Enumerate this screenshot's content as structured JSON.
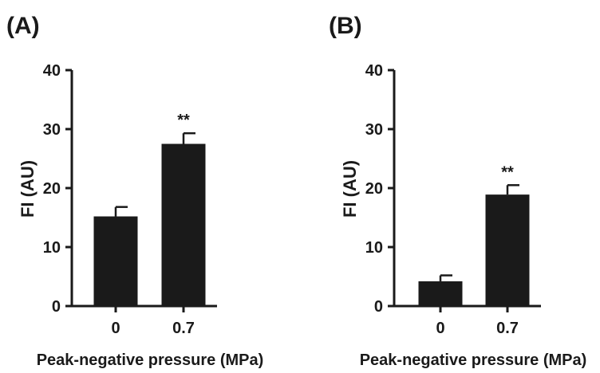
{
  "chart_data": [
    {
      "type": "bar",
      "panel_label": "(A)",
      "categories": [
        "0",
        "0.7"
      ],
      "values": [
        15.2,
        27.5
      ],
      "errors": [
        1.6,
        1.8
      ],
      "annotations": [
        "",
        "**"
      ],
      "xlabel": "Peak-negative pressure (MPa)",
      "ylabel": "FI (AU)",
      "ylim": [
        0,
        40
      ],
      "yticks": [
        "0",
        "10",
        "20",
        "30",
        "40"
      ],
      "bar_color": "#1a1a1a",
      "grid": false
    },
    {
      "type": "bar",
      "panel_label": "(B)",
      "categories": [
        "0",
        "0.7"
      ],
      "values": [
        4.2,
        18.9
      ],
      "errors": [
        1.0,
        1.6
      ],
      "annotations": [
        "",
        "**"
      ],
      "xlabel": "Peak-negative pressure (MPa)",
      "ylabel": "FI (AU)",
      "ylim": [
        0,
        40
      ],
      "yticks": [
        "0",
        "10",
        "20",
        "30",
        "40"
      ],
      "bar_color": "#1a1a1a",
      "grid": false
    }
  ]
}
